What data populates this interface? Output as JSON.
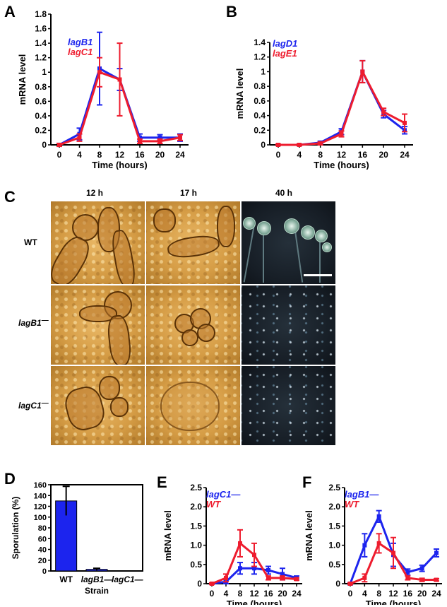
{
  "panels": {
    "A": {
      "letter": "A"
    },
    "B": {
      "letter": "B"
    },
    "C": {
      "letter": "C"
    },
    "D": {
      "letter": "D"
    },
    "E": {
      "letter": "E"
    },
    "F": {
      "letter": "F"
    }
  },
  "colors": {
    "blue": "#1c24ee",
    "red": "#ee1c2e"
  },
  "microscopy": {
    "columns": [
      "12 h",
      "17 h",
      "40 h"
    ],
    "rows": [
      "WT",
      "lagB1",
      "lagC1"
    ],
    "row_superscript": "—"
  },
  "chart_data": [
    {
      "panel": "A",
      "type": "line",
      "xlabel": "Time (hours)",
      "ylabel": "mRNA level",
      "x": [
        0,
        4,
        8,
        12,
        16,
        20,
        24
      ],
      "xticks": [
        "0",
        "4",
        "8",
        "12",
        "16",
        "20",
        "24"
      ],
      "yticks": [
        "0",
        "0.2",
        "0.4",
        "0.6",
        "0.8",
        "1",
        "1.2",
        "1.4",
        "1.6",
        "1.8"
      ],
      "ylim": [
        0,
        1.8
      ],
      "series": [
        {
          "name": "lagB1",
          "color": "#1c24ee",
          "values": [
            0,
            0.15,
            1.05,
            0.9,
            0.1,
            0.1,
            0.1
          ],
          "err": [
            0.02,
            0.08,
            0.5,
            0.15,
            0.05,
            0.04,
            0.05
          ]
        },
        {
          "name": "lagC1",
          "color": "#ee1c2e",
          "values": [
            0,
            0.1,
            1.0,
            0.9,
            0.05,
            0.05,
            0.1
          ],
          "err": [
            0.02,
            0.05,
            0.2,
            0.5,
            0.03,
            0.03,
            0.04
          ]
        }
      ]
    },
    {
      "panel": "B",
      "type": "line",
      "xlabel": "Time (hours)",
      "ylabel": "mRNA level",
      "x": [
        0,
        4,
        8,
        12,
        16,
        20,
        24
      ],
      "xticks": [
        "0",
        "4",
        "8",
        "12",
        "16",
        "20",
        "24"
      ],
      "yticks": [
        "0",
        "0.2",
        "0.4",
        "0.6",
        "0.8",
        "1",
        "1.2",
        "1.4"
      ],
      "ylim": [
        0,
        1.4
      ],
      "series": [
        {
          "name": "lagD1",
          "color": "#1c24ee",
          "values": [
            0,
            0,
            0.03,
            0.18,
            1.0,
            0.42,
            0.2
          ],
          "err": [
            0.01,
            0.01,
            0.02,
            0.04,
            0.15,
            0.05,
            0.05
          ]
        },
        {
          "name": "lagE1",
          "color": "#ee1c2e",
          "values": [
            0,
            0,
            0.02,
            0.15,
            1.0,
            0.45,
            0.3
          ],
          "err": [
            0.01,
            0.01,
            0.02,
            0.04,
            0.15,
            0.05,
            0.12
          ]
        }
      ]
    },
    {
      "panel": "D",
      "type": "bar",
      "xlabel": "Strain",
      "ylabel": "Sporulation (%)",
      "categories": [
        "WT",
        "lagB1—",
        "lagC1—"
      ],
      "values": [
        130,
        3,
        0
      ],
      "err": [
        27,
        2,
        0
      ],
      "color": "#1c24ee",
      "yticks": [
        "0",
        "20",
        "40",
        "60",
        "80",
        "100",
        "120",
        "140",
        "160"
      ],
      "ylim": [
        0,
        160
      ]
    },
    {
      "panel": "E",
      "type": "line",
      "xlabel": "Time (hours)",
      "ylabel": "mRNA level",
      "x": [
        0,
        4,
        8,
        12,
        16,
        20,
        24
      ],
      "xticks": [
        "0",
        "4",
        "8",
        "12",
        "16",
        "20",
        "24"
      ],
      "yticks": [
        "0",
        "0.5",
        "1.0",
        "1.5",
        "2.0",
        "2.5"
      ],
      "ylim": [
        0,
        2.5
      ],
      "series": [
        {
          "name": "lagC1—",
          "color": "#1c24ee",
          "values": [
            0,
            0.05,
            0.4,
            0.4,
            0.35,
            0.25,
            0.15
          ],
          "err": [
            0.02,
            0.05,
            0.15,
            0.15,
            0.1,
            0.15,
            0.05
          ]
        },
        {
          "name": "WT",
          "color": "#ee1c2e",
          "values": [
            0,
            0.15,
            1.05,
            0.75,
            0.15,
            0.15,
            0.12
          ],
          "err": [
            0.02,
            0.1,
            0.35,
            0.3,
            0.05,
            0.05,
            0.03
          ]
        }
      ]
    },
    {
      "panel": "F",
      "type": "line",
      "xlabel": "Time (hours)",
      "ylabel": "mRNA level",
      "x": [
        0,
        4,
        8,
        12,
        16,
        20,
        24
      ],
      "xticks": [
        "0",
        "4",
        "8",
        "12",
        "16",
        "20",
        "24"
      ],
      "yticks": [
        "0",
        "0.5",
        "1.0",
        "1.5",
        "2.0",
        "2.5"
      ],
      "ylim": [
        0,
        2.5
      ],
      "series": [
        {
          "name": "lagB1—",
          "color": "#1c24ee",
          "values": [
            0,
            1.0,
            1.75,
            0.75,
            0.3,
            0.4,
            0.8
          ],
          "err": [
            0.03,
            0.3,
            0.15,
            0.3,
            0.08,
            0.08,
            0.1
          ]
        },
        {
          "name": "WT",
          "color": "#ee1c2e",
          "values": [
            0,
            0.15,
            1.05,
            0.8,
            0.15,
            0.1,
            0.1
          ],
          "err": [
            0.02,
            0.1,
            0.25,
            0.4,
            0.05,
            0.04,
            0.03
          ]
        }
      ]
    }
  ]
}
